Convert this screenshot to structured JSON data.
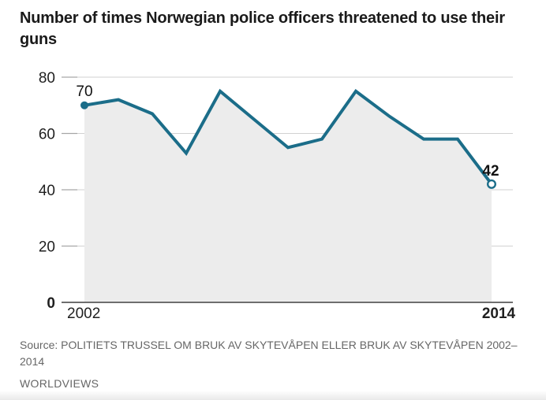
{
  "chart_data": {
    "type": "area",
    "title": "Number of times Norwegian police officers threatened to use their guns",
    "x": [
      2002,
      2003,
      2004,
      2005,
      2006,
      2007,
      2008,
      2009,
      2010,
      2011,
      2012,
      2013,
      2014
    ],
    "values": [
      70,
      72,
      67,
      53,
      75,
      65,
      55,
      58,
      75,
      66,
      58,
      58,
      42
    ],
    "ylim": [
      0,
      80
    ],
    "yticks": [
      0,
      20,
      40,
      60,
      80
    ],
    "xtick_labels": [
      {
        "x": 2002,
        "label": "2002",
        "bold": false
      },
      {
        "x": 2014,
        "label": "2014",
        "bold": true
      }
    ],
    "annotations": [
      {
        "x": 2002,
        "value": 70,
        "label": "70",
        "marker": "filled-dot",
        "bold": false
      },
      {
        "x": 2014,
        "value": 42,
        "label": "42",
        "marker": "hollow-dot",
        "bold": true
      }
    ],
    "grid": true,
    "legend": false,
    "colors": {
      "line": "#1b6d89",
      "area": "#ececec",
      "grid": "#d2d2d2",
      "tick": "#a6a6a6",
      "axis": "#6e6e6e",
      "label": "#1f1f1f"
    }
  },
  "footer": {
    "source": "Source: POLITIETS TRUSSEL OM BRUK AV SKYTEVÅPEN ELLER BRUK AV SKYTEVÅPEN 2002–2014",
    "attribution": "WORLDVIEWS"
  }
}
